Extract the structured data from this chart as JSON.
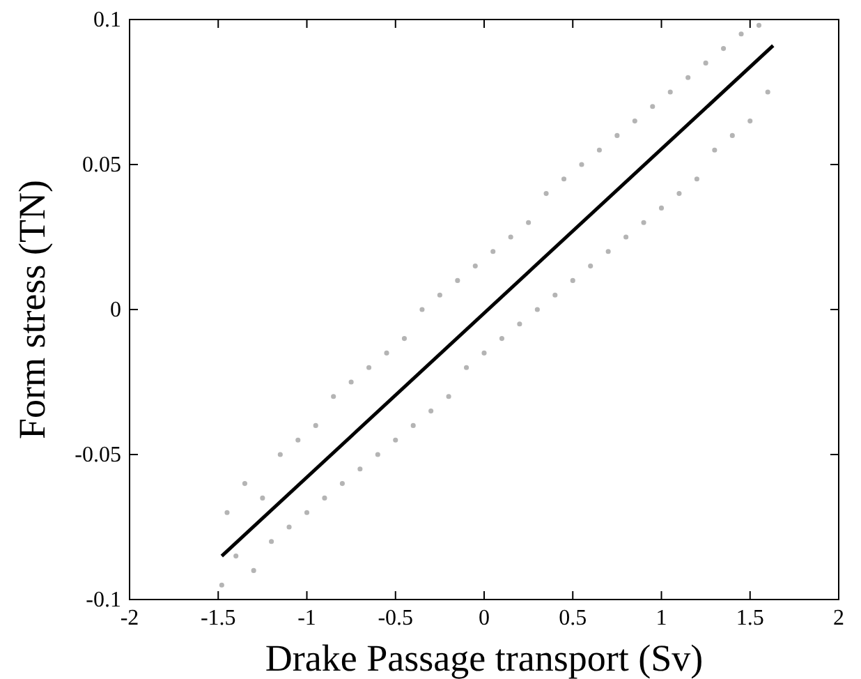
{
  "chart_data": {
    "type": "scatter",
    "xlabel": "Drake Passage transport (Sv)",
    "ylabel": "Form stress (TN)",
    "xlim": [
      -2,
      2
    ],
    "ylim": [
      -0.1,
      0.1
    ],
    "xticks": [
      -2,
      -1.5,
      -1,
      -0.5,
      0,
      0.5,
      1,
      1.5,
      2
    ],
    "yticks": [
      -0.1,
      -0.05,
      0,
      0.05,
      0.1
    ],
    "series": [
      {
        "marker": "circle",
        "color": "#b4b4b4",
        "x": [
          -1.48,
          -1.45,
          -1.4,
          -1.35,
          -1.3,
          -1.25,
          -1.2,
          -1.15,
          -1.1,
          -1.05,
          -1.0,
          -0.95,
          -0.9,
          -0.85,
          -0.8,
          -0.75,
          -0.7,
          -0.65,
          -0.6,
          -0.55,
          -0.5,
          -0.45,
          -0.4,
          -0.35,
          -0.3,
          -0.25,
          -0.2,
          -0.15,
          -0.1,
          -0.05,
          0,
          0.05,
          0.1,
          0.15,
          0.2,
          0.25,
          0.3,
          0.35,
          0.4,
          0.45,
          0.5,
          0.55,
          0.6,
          0.65,
          0.7,
          0.75,
          0.8,
          0.85,
          0.9,
          0.95,
          1.0,
          1.05,
          1.1,
          1.15,
          1.2,
          1.25,
          1.3,
          1.35,
          1.4,
          1.45,
          1.5,
          1.55,
          1.6
        ],
        "values": [
          -0.095,
          -0.07,
          -0.085,
          -0.06,
          -0.09,
          -0.065,
          -0.08,
          -0.05,
          -0.075,
          -0.045,
          -0.07,
          -0.04,
          -0.065,
          -0.03,
          -0.06,
          -0.025,
          -0.055,
          -0.02,
          -0.05,
          -0.015,
          -0.045,
          -0.01,
          -0.04,
          0.0,
          -0.035,
          0.005,
          -0.03,
          0.01,
          -0.02,
          0.015,
          -0.015,
          0.02,
          -0.01,
          0.025,
          -0.005,
          0.03,
          0.0,
          0.04,
          0.005,
          0.045,
          0.01,
          0.05,
          0.015,
          0.055,
          0.02,
          0.06,
          0.025,
          0.065,
          0.03,
          0.07,
          0.035,
          0.075,
          0.04,
          0.08,
          0.045,
          0.085,
          0.055,
          0.09,
          0.06,
          0.095,
          0.065,
          0.098,
          0.075
        ]
      },
      {
        "type": "line",
        "color": "#000000",
        "x": [
          -1.48,
          1.63
        ],
        "values": [
          -0.085,
          0.091
        ]
      }
    ]
  }
}
